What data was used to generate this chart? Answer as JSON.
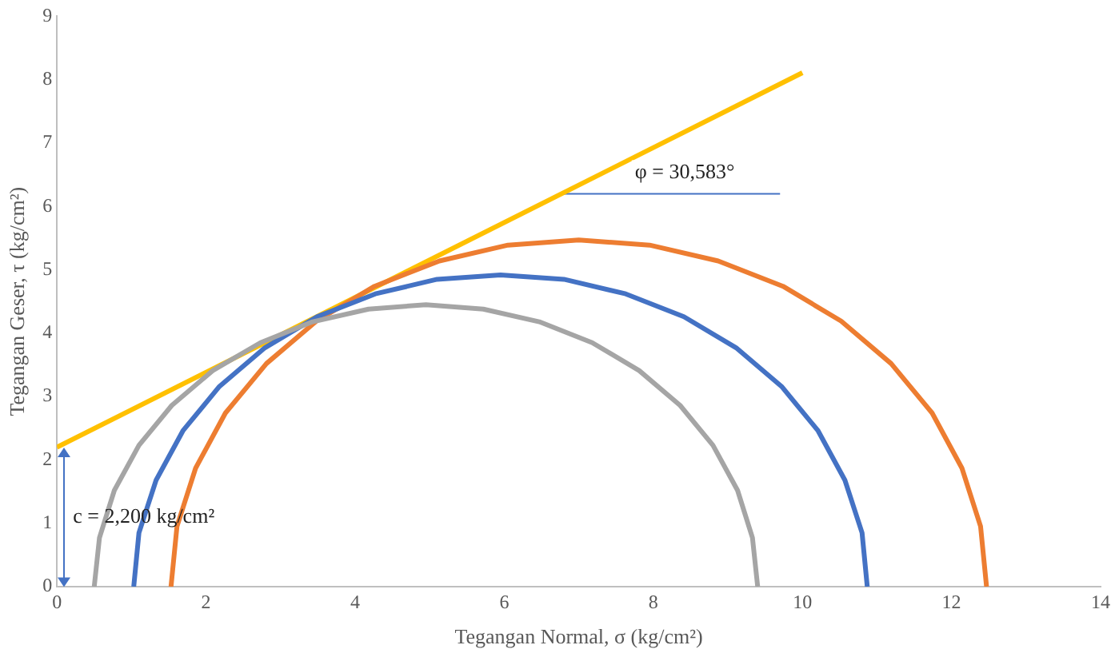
{
  "chart_data": {
    "type": "line",
    "xlabel": "Tegangan Normal, σ (kg/cm²)",
    "ylabel": "Tegangan Geser, τ (kg/cm²)",
    "xlim": [
      0,
      14
    ],
    "xticks": [
      0,
      2,
      4,
      6,
      8,
      10,
      12,
      14
    ],
    "ylim": [
      0,
      9
    ],
    "yticks": [
      0,
      1,
      2,
      3,
      4,
      5,
      6,
      7,
      8,
      9
    ],
    "grid": false,
    "legend": false,
    "marker": "none",
    "line_style": "solid",
    "series": [
      {
        "color": "#a5a5a5",
        "x": [
          0.5,
          0.57,
          0.77,
          1.1,
          1.54,
          2.09,
          2.73,
          3.43,
          4.18,
          4.95,
          5.72,
          6.47,
          7.18,
          7.81,
          8.36,
          8.8,
          9.13,
          9.33,
          9.4
        ],
        "values": [
          0,
          0.77,
          1.52,
          2.23,
          2.86,
          3.41,
          3.85,
          4.18,
          4.38,
          4.45,
          4.38,
          4.18,
          3.85,
          3.41,
          2.86,
          2.23,
          1.52,
          0.77,
          0
        ]
      },
      {
        "color": "#4472c4",
        "x": [
          1.03,
          1.1,
          1.33,
          1.69,
          2.18,
          2.79,
          3.49,
          4.27,
          5.1,
          5.95,
          6.8,
          7.63,
          8.41,
          9.11,
          9.72,
          10.21,
          10.57,
          10.8,
          10.87
        ],
        "values": [
          0,
          0.85,
          1.68,
          2.46,
          3.16,
          3.77,
          4.26,
          4.62,
          4.85,
          4.92,
          4.85,
          4.62,
          4.26,
          3.77,
          3.16,
          2.46,
          1.68,
          0.85,
          0
        ]
      },
      {
        "color": "#ed7d31",
        "x": [
          1.53,
          1.61,
          1.86,
          2.26,
          2.81,
          3.48,
          4.26,
          5.13,
          6.05,
          7.0,
          7.95,
          8.87,
          9.74,
          10.52,
          11.19,
          11.74,
          12.14,
          12.39,
          12.47
        ],
        "values": [
          0,
          0.95,
          1.87,
          2.74,
          3.52,
          4.19,
          4.74,
          5.14,
          5.39,
          5.47,
          5.39,
          5.14,
          4.74,
          4.19,
          3.52,
          2.74,
          1.87,
          0.95,
          0
        ]
      },
      {
        "color": "#ffc000",
        "x": [
          0,
          10
        ],
        "values": [
          2.2,
          8.11
        ]
      },
      {
        "color": "#4472c4",
        "x": [
          6.8,
          9.7
        ],
        "values": [
          6.2,
          6.2
        ]
      }
    ],
    "annotations": [
      {
        "text": "φ = 30,583°",
        "x": 8.25,
        "y": 6.2
      },
      "c = 2,200 kg/cm²"
    ]
  }
}
